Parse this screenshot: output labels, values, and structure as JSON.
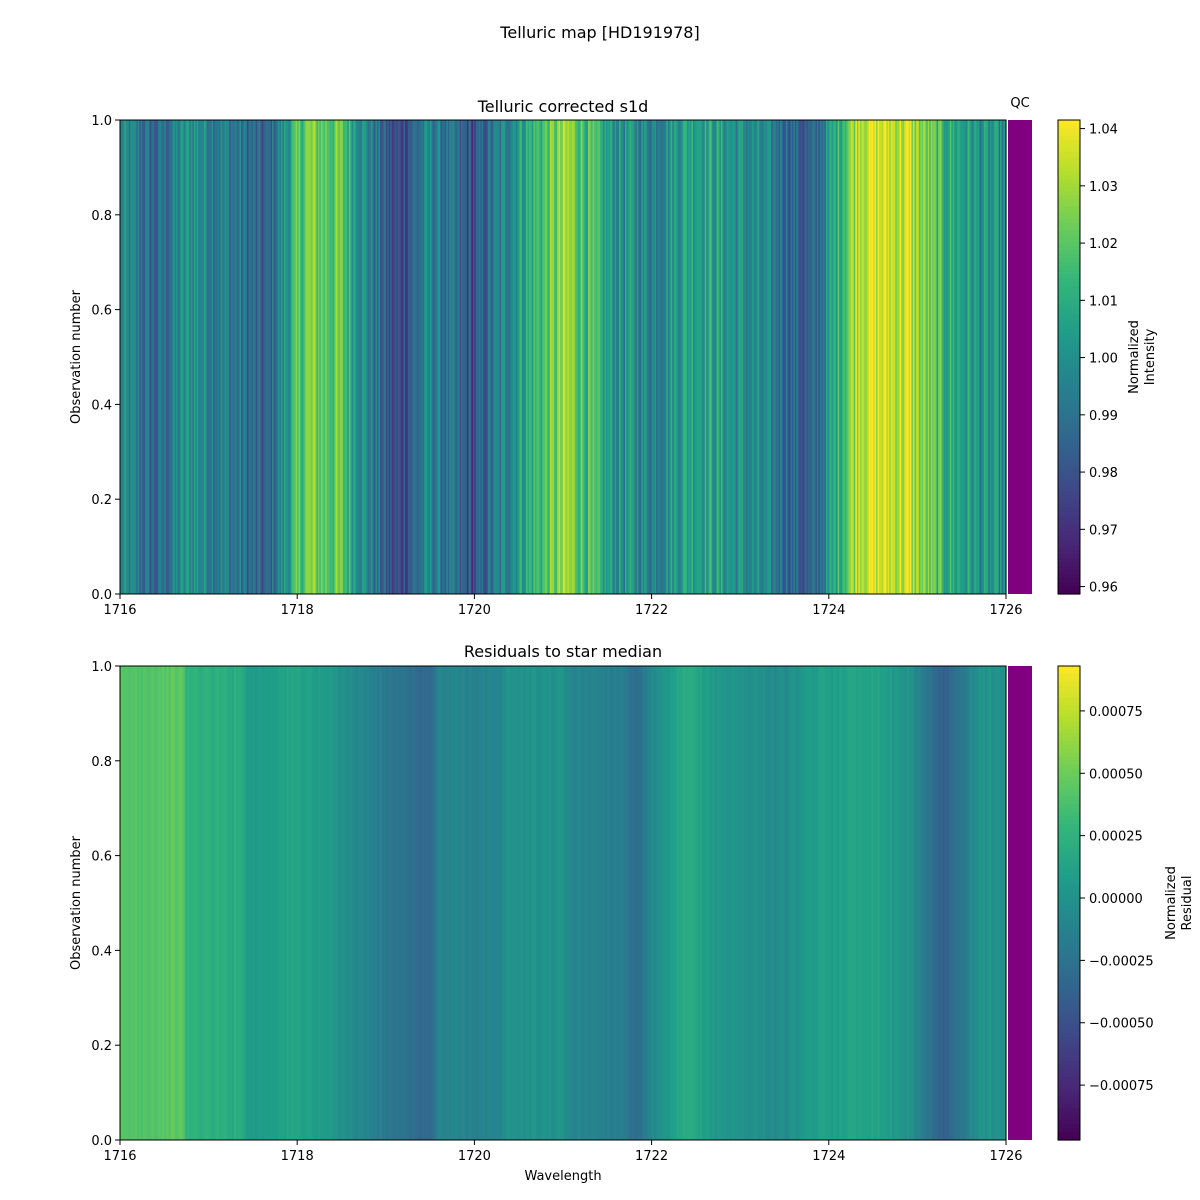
{
  "figure": {
    "title": "Telluric map [HD191978]"
  },
  "chart_data": [
    {
      "type": "heatmap",
      "title": "Telluric corrected s1d",
      "xlabel": "",
      "ylabel": "Observation number",
      "xlim": [
        1716,
        1726
      ],
      "ylim": [
        0.0,
        1.0
      ],
      "xticks": [
        "1716",
        "1718",
        "1720",
        "1722",
        "1724",
        "1726"
      ],
      "yticks": [
        "0.0",
        "0.2",
        "0.4",
        "0.6",
        "0.8",
        "1.0"
      ],
      "qc_label": "QC",
      "qc_color": "#800080",
      "colormap": "viridis",
      "colorbar": {
        "label_line1": "Normalized",
        "label_line2": "Intensity",
        "vmin": 0.9587,
        "vmax": 1.0415,
        "ticks": [
          "0.96",
          "0.97",
          "0.98",
          "0.99",
          "1.00",
          "1.01",
          "1.02",
          "1.03",
          "1.04"
        ],
        "tick_values": [
          0.96,
          0.97,
          0.98,
          0.99,
          1.0,
          1.01,
          1.02,
          1.03,
          1.04
        ]
      },
      "column_profile": [
        {
          "x": 1716.0,
          "v": 0.998
        },
        {
          "x": 1716.4,
          "v": 0.985
        },
        {
          "x": 1716.8,
          "v": 1.002
        },
        {
          "x": 1717.2,
          "v": 0.994
        },
        {
          "x": 1717.65,
          "v": 0.982
        },
        {
          "x": 1718.1,
          "v": 1.024
        },
        {
          "x": 1718.5,
          "v": 1.019
        },
        {
          "x": 1719.1,
          "v": 0.975
        },
        {
          "x": 1719.5,
          "v": 0.996
        },
        {
          "x": 1720.0,
          "v": 0.978
        },
        {
          "x": 1720.5,
          "v": 1.006
        },
        {
          "x": 1721.05,
          "v": 1.028
        },
        {
          "x": 1721.5,
          "v": 1.004
        },
        {
          "x": 1722.0,
          "v": 0.997
        },
        {
          "x": 1722.5,
          "v": 1.01
        },
        {
          "x": 1723.0,
          "v": 1.0
        },
        {
          "x": 1723.5,
          "v": 0.99
        },
        {
          "x": 1723.8,
          "v": 0.98
        },
        {
          "x": 1724.35,
          "v": 1.038
        },
        {
          "x": 1724.9,
          "v": 1.033
        },
        {
          "x": 1725.3,
          "v": 1.012
        },
        {
          "x": 1725.7,
          "v": 1.001
        },
        {
          "x": 1726.0,
          "v": 0.998
        }
      ]
    },
    {
      "type": "heatmap",
      "title": "Residuals to star median",
      "xlabel": "Wavelength",
      "ylabel": "Observation number",
      "xlim": [
        1716,
        1726
      ],
      "ylim": [
        0.0,
        1.0
      ],
      "xticks": [
        "1716",
        "1718",
        "1720",
        "1722",
        "1724",
        "1726"
      ],
      "yticks": [
        "0.0",
        "0.2",
        "0.4",
        "0.6",
        "0.8",
        "1.0"
      ],
      "qc_color": "#800080",
      "colormap": "viridis",
      "colorbar": {
        "label_line1": "Normalized",
        "label_line2": "Residual",
        "vmin": -0.00097,
        "vmax": 0.00093,
        "ticks": [
          "−0.00075",
          "−0.00050",
          "−0.00025",
          "0.00000",
          "0.00025",
          "0.00050",
          "0.00075"
        ],
        "tick_values": [
          -0.00075,
          -0.0005,
          -0.00025,
          0.0,
          0.00025,
          0.0005,
          0.00075
        ]
      },
      "column_profile": [
        {
          "x": 1716.0,
          "v": 0.0004
        },
        {
          "x": 1716.7,
          "v": 0.00045
        },
        {
          "x": 1716.75,
          "v": 0.00025
        },
        {
          "x": 1717.4,
          "v": 0.0002
        },
        {
          "x": 1717.45,
          "v": 5e-05
        },
        {
          "x": 1718.0,
          "v": 0.00015
        },
        {
          "x": 1718.5,
          "v": 0.0
        },
        {
          "x": 1719.0,
          "v": -0.0002
        },
        {
          "x": 1719.5,
          "v": -0.00035
        },
        {
          "x": 1719.6,
          "v": -0.0001
        },
        {
          "x": 1720.3,
          "v": -0.00012
        },
        {
          "x": 1720.35,
          "v": 0.0
        },
        {
          "x": 1721.0,
          "v": 0.0
        },
        {
          "x": 1721.05,
          "v": -8e-05
        },
        {
          "x": 1721.7,
          "v": -0.00015
        },
        {
          "x": 1721.8,
          "v": -0.0003
        },
        {
          "x": 1722.0,
          "v": -0.0001
        },
        {
          "x": 1722.4,
          "v": 0.0002
        },
        {
          "x": 1722.7,
          "v": 5e-05
        },
        {
          "x": 1723.0,
          "v": 0.0
        },
        {
          "x": 1723.5,
          "v": -5e-05
        },
        {
          "x": 1723.9,
          "v": 0.0001
        },
        {
          "x": 1724.5,
          "v": 0.00015
        },
        {
          "x": 1724.9,
          "v": 0.0
        },
        {
          "x": 1725.3,
          "v": -0.0004
        },
        {
          "x": 1725.5,
          "v": -0.0002
        },
        {
          "x": 1725.7,
          "v": 0.0
        },
        {
          "x": 1726.0,
          "v": 0.0
        }
      ]
    }
  ]
}
